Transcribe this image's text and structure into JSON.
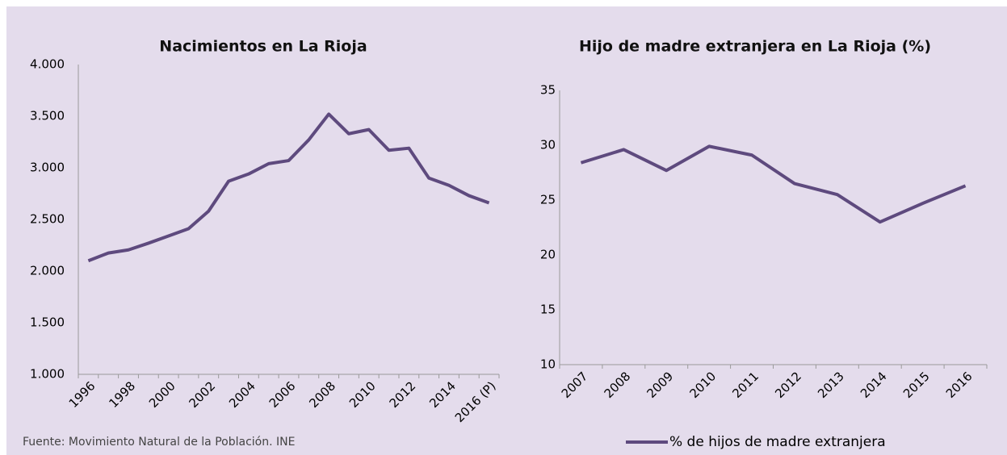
{
  "chart_data": [
    {
      "type": "line",
      "title": "Nacimientos en La Rioja",
      "categories": [
        "1996",
        null,
        "1998",
        null,
        "2000",
        null,
        "2002",
        null,
        "2004",
        null,
        "2006",
        null,
        "2008",
        null,
        "2010",
        null,
        "2012",
        null,
        "2014",
        null,
        "2016 (P)"
      ],
      "values": [
        2100,
        2175,
        2205,
        2270,
        2340,
        2410,
        2580,
        2870,
        2940,
        3040,
        3070,
        3270,
        3520,
        3330,
        3370,
        3170,
        3190,
        2900,
        2830,
        2730,
        2660
      ],
      "color": "#5e4a7e",
      "ylim": [
        1000,
        4000
      ],
      "yticks": [
        {
          "value": 1000,
          "label": "1.000"
        },
        {
          "value": 1500,
          "label": "1.500"
        },
        {
          "value": 2000,
          "label": "2.000"
        },
        {
          "value": 2500,
          "label": "2.500"
        },
        {
          "value": 3000,
          "label": "3.000"
        },
        {
          "value": 3500,
          "label": "3.500"
        },
        {
          "value": 4000,
          "label": "4.000"
        }
      ],
      "grid": false
    },
    {
      "type": "line",
      "title": "Hijo de madre extranjera en La Rioja (%)",
      "categories": [
        "2007",
        "2008",
        "2009",
        "2010",
        "2011",
        "2012",
        "2013",
        "2014",
        "2015",
        "2016"
      ],
      "series": [
        {
          "name": "% de hijos de madre extranjera",
          "color": "#5e4a7e",
          "values": [
            28.4,
            29.6,
            27.7,
            29.9,
            29.1,
            26.5,
            25.5,
            23.0,
            24.7,
            26.3
          ]
        }
      ],
      "ylim": [
        10,
        35
      ],
      "yticks": [
        10,
        15,
        20,
        25,
        30,
        35
      ],
      "grid": false,
      "legend": "bottom"
    }
  ],
  "source": "Fuente: Movimiento Natural de la Población. INE"
}
